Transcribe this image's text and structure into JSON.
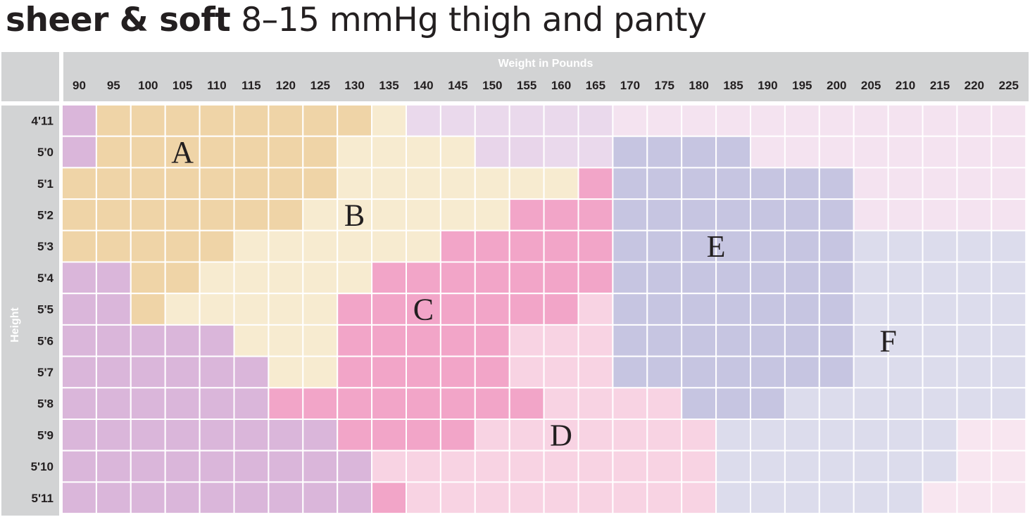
{
  "title": {
    "bold": "sheer & soft",
    "light": "8–15 mmHg thigh and panty"
  },
  "chart_data": {
    "type": "heatmap",
    "title": "sheer & soft 8–15 mmHg thigh and panty",
    "xlabel": "Weight in Pounds",
    "ylabel": "Height",
    "x": [
      "90",
      "95",
      "100",
      "105",
      "110",
      "115",
      "120",
      "125",
      "130",
      "135",
      "140",
      "145",
      "150",
      "155",
      "160",
      "165",
      "170",
      "175",
      "180",
      "185",
      "190",
      "195",
      "200",
      "205",
      "210",
      "215",
      "220",
      "225"
    ],
    "y": [
      "4'11",
      "5'0",
      "5'1",
      "5'2",
      "5'3",
      "5'4",
      "5'5",
      "5'6",
      "5'7",
      "5'8",
      "5'9",
      "5'10",
      "5'11"
    ],
    "zones": [
      "A",
      "B",
      "C",
      "D",
      "E",
      "F"
    ],
    "grid": [
      "0AAAAAAAABbbbbbbcccccccccccc",
      "0AAAAAAABBBB22bbEEEEcccccccc",
      "AAAAAAAABBBBBBB1EEEEEEEccccc",
      "AAAAAAABBBBBB111EEEEEEEccccc",
      "AAAAABBBBBB11111EEEEEEEFFFFF",
      "00AABBBBB1111111EEEEEEEFFFFF",
      "00ABBBBB1111111DEEEEEEEFFFFF",
      "00000BBB11111DDDEEEEEEEFFFFF",
      "000000BB11111DDDEEEEEEEFFFFF",
      "00000011111111DDDDEEEFFFFFFF",
      "000000001111DDDDDDDFFFFFFFdd",
      "000000000DDDDDDDDDDFFFFFFFdd",
      "0000000001DDDDDDDDDFFFFFFddd"
    ],
    "label_positions": {
      "A": [
        3.5,
        1.5
      ],
      "B": [
        8.5,
        3.5
      ],
      "C": [
        10.5,
        6.5
      ],
      "D": [
        14.5,
        10.5
      ],
      "E": [
        19,
        4.5
      ],
      "F": [
        24,
        7.5
      ]
    },
    "colors": {
      "A": "#efd4a7",
      "B": "#f7ebd0",
      "C": "#f5aacb",
      "D": "#f8d3e3",
      "E": "#c6c5e1",
      "F": "#dcdcec",
      "0": "#dab6da",
      "1": "#f2a5c8",
      "2": "#e8d5ea",
      "b": "#ead9ec",
      "c": "#f4e3f0",
      "d": "#f8e6f0",
      "header_bg": "#d2d3d4",
      "grid_line": "#ffffff"
    },
    "grid_lines": "on",
    "legend": "none"
  }
}
